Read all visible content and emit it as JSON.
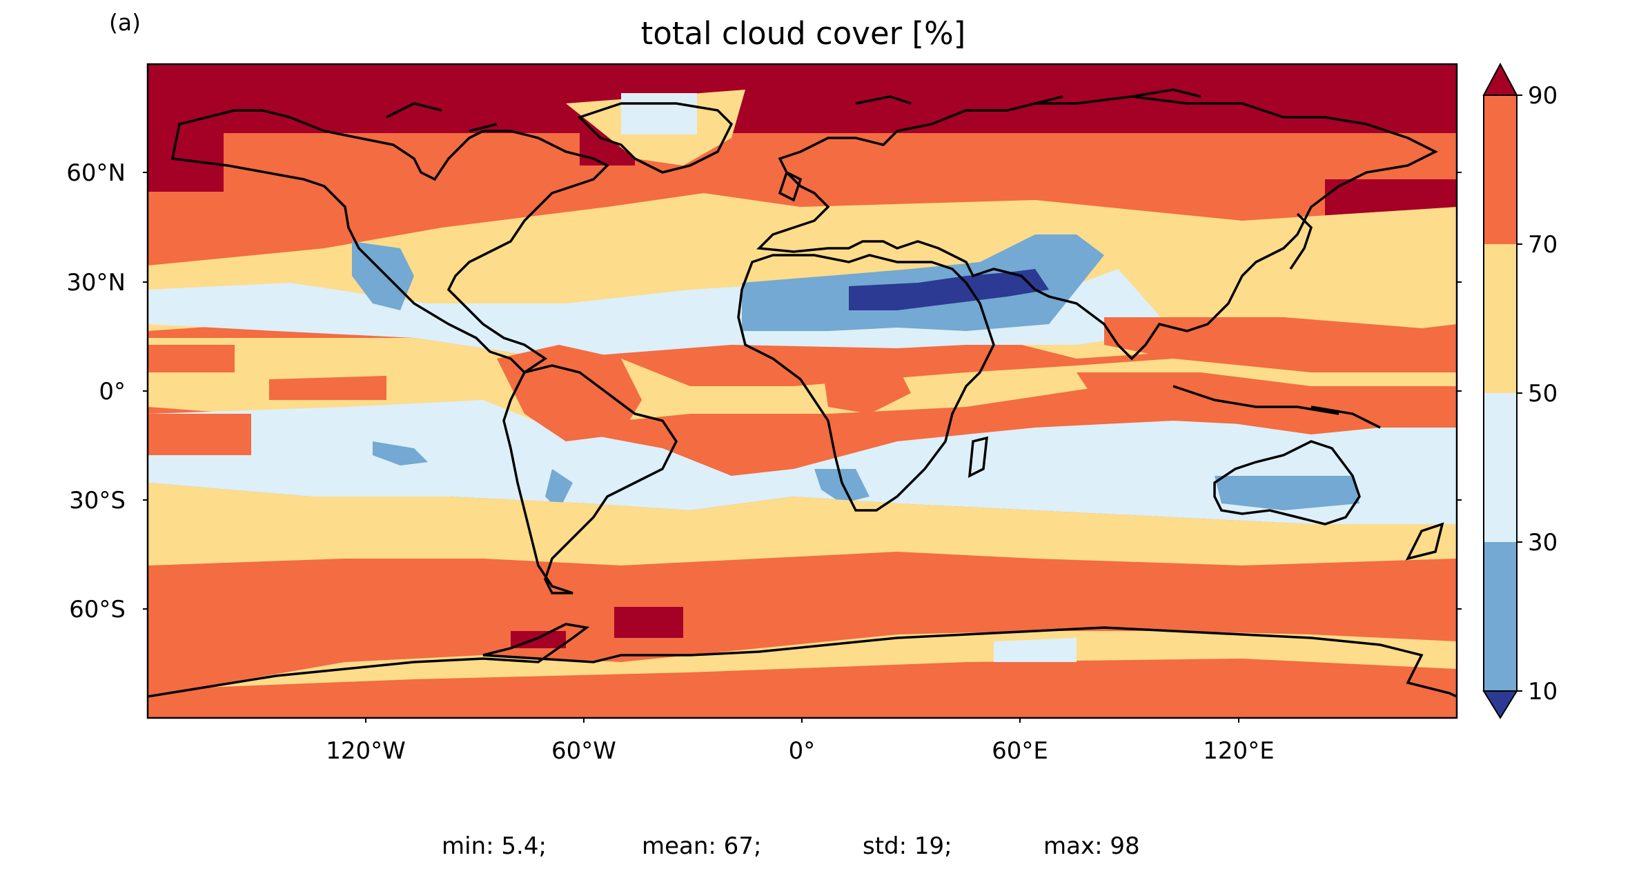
{
  "panel_label": "(a)",
  "title": "total cloud cover [%]",
  "stats": {
    "min": "min: 5.4;",
    "mean": "mean: 67;",
    "std": "std: 19;",
    "max": "max: 98"
  },
  "colorbar": {
    "ticks": [
      "10",
      "30",
      "50",
      "70",
      "90"
    ],
    "extend": "both",
    "colors": [
      "#2c3a93",
      "#73a9d2",
      "#ddeff8",
      "#fddc8b",
      "#f36c42",
      "#a50026"
    ],
    "bounds": [
      10,
      30,
      50,
      70,
      90
    ]
  },
  "map": {
    "projection": "PlateCarree",
    "lat_ticks": [
      "60°N",
      "30°N",
      "0°",
      "30°S",
      "60°S"
    ],
    "lon_ticks": [
      "120°W",
      "60°W",
      "0°",
      "60°E",
      "120°E"
    ]
  },
  "chart_data": {
    "type": "heatmap",
    "title": "total cloud cover [%]",
    "variable": "total cloud cover",
    "units": "%",
    "levels": [
      10,
      30,
      50,
      70,
      90
    ],
    "summary": {
      "min": 5.4,
      "mean": 67,
      "std": 19,
      "max": 98
    }
  }
}
